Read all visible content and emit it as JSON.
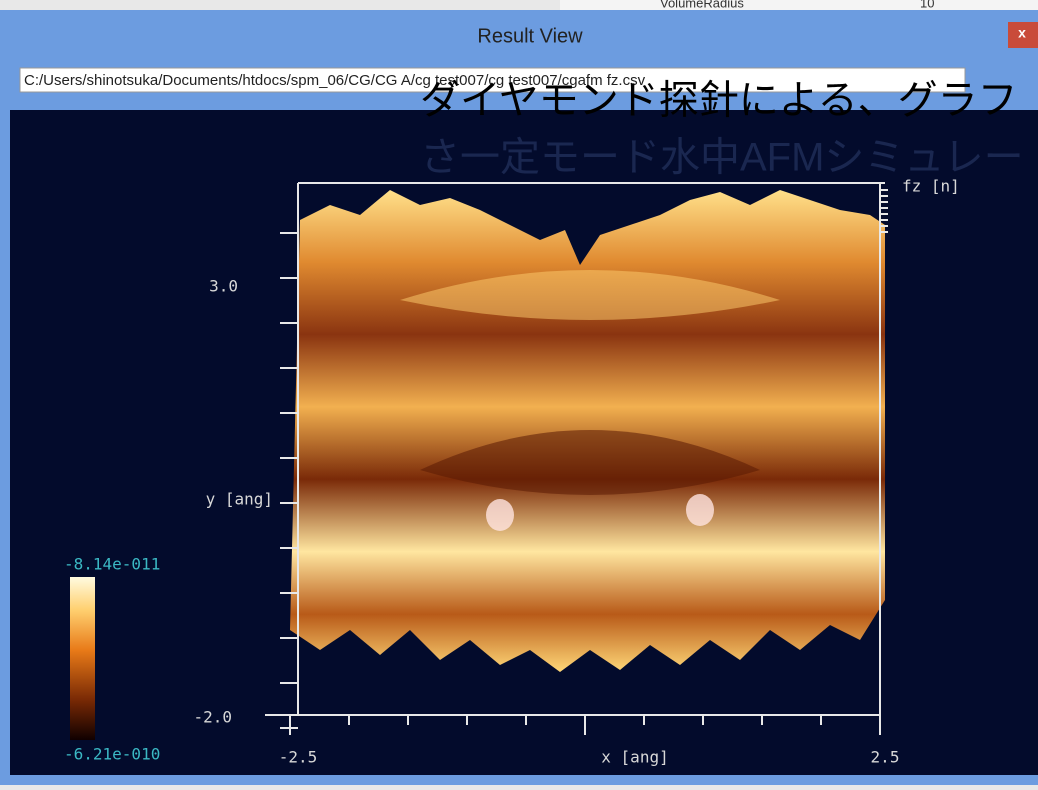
{
  "background_window": {
    "row_label": "VolumeRadius",
    "row_value": "10"
  },
  "window": {
    "title": "Result View",
    "close": "x",
    "path": "C:/Users/shinotsuka/Documents/htdocs/spm_06/CG/CG A/cg test007/cg test007/cgafm fz.csv"
  },
  "overlay": {
    "lines": [
      "ダイヤモンド探針による、グラフ",
      "さ一定モード水中AFMシミュレー"
    ]
  },
  "plot": {
    "y_top_label": "3.0",
    "y_axis_label": "y [ang]",
    "y_bottom_label": "-2.0",
    "x_left_label": "-2.5",
    "x_axis_label": "x [ang]",
    "x_right_label": "2.5",
    "z_axis_label": "fz [n]"
  },
  "colorbar": {
    "max_label": "-8.14e-011",
    "min_label": "-6.21e-010"
  }
}
